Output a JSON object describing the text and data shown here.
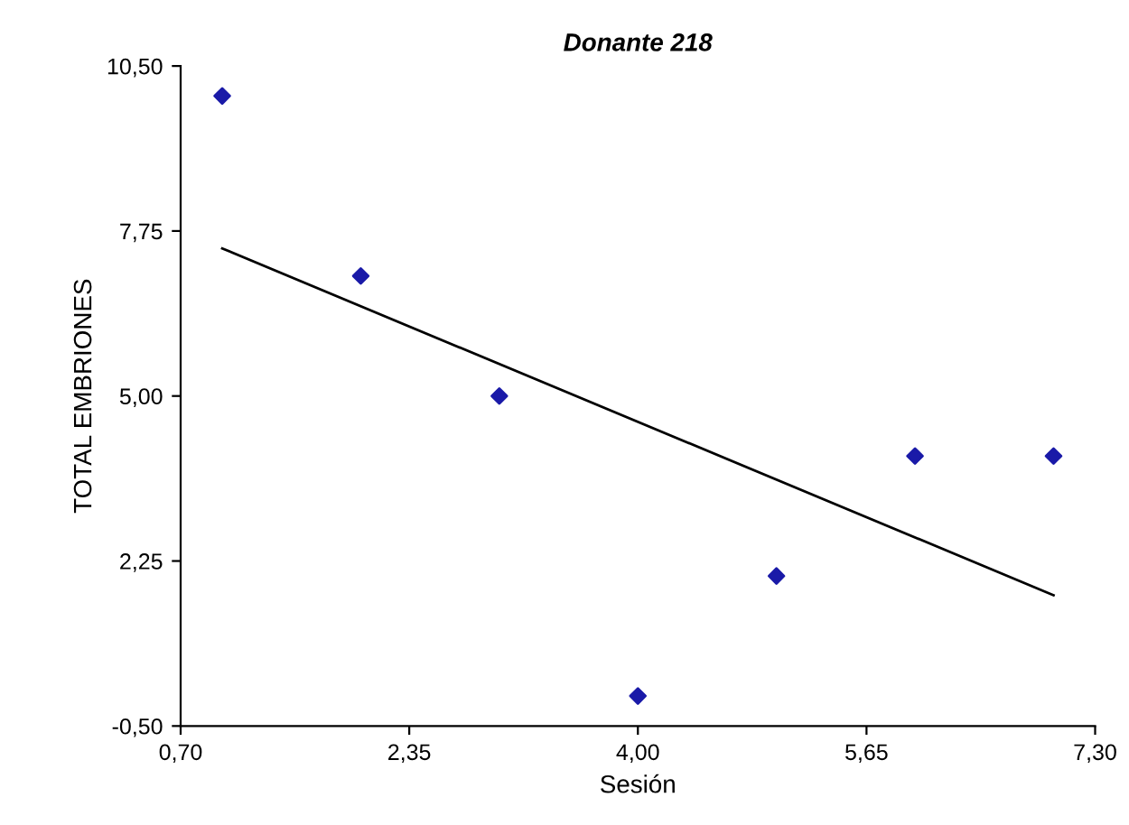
{
  "chart_data": {
    "type": "scatter",
    "title": "Donante 218",
    "xlabel": "Sesión",
    "ylabel": "TOTAL EMBRIONES",
    "series": [
      {
        "color": "#1a1aa8",
        "x": [
          1,
          2,
          3,
          4,
          5,
          6,
          7
        ],
        "values": [
          10,
          7,
          5,
          0,
          2,
          4,
          4
        ],
        "marker": "diamond"
      },
      {
        "type": "line",
        "color": "#000000",
        "x": [
          1,
          7
        ],
        "values": [
          7.46,
          1.68
        ],
        "marker": "none"
      }
    ],
    "xlim": [
      0.7,
      7.3
    ],
    "xticks": [
      {
        "value": 0.7,
        "label": "0,70"
      },
      {
        "value": 2.35,
        "label": "2,35"
      },
      {
        "value": 4.0,
        "label": "4,00"
      },
      {
        "value": 5.65,
        "label": "5,65"
      },
      {
        "value": 7.3,
        "label": "7,30"
      }
    ],
    "ylim": [
      -0.5,
      10.5
    ],
    "yticks": [
      {
        "value": -0.5,
        "label": "-0,50"
      },
      {
        "value": 2.25,
        "label": "2,25"
      },
      {
        "value": 5.0,
        "label": "5,00"
      },
      {
        "value": 7.75,
        "label": "7,75"
      },
      {
        "value": 10.5,
        "label": "10,50"
      }
    ],
    "grid": false,
    "legend": false
  }
}
